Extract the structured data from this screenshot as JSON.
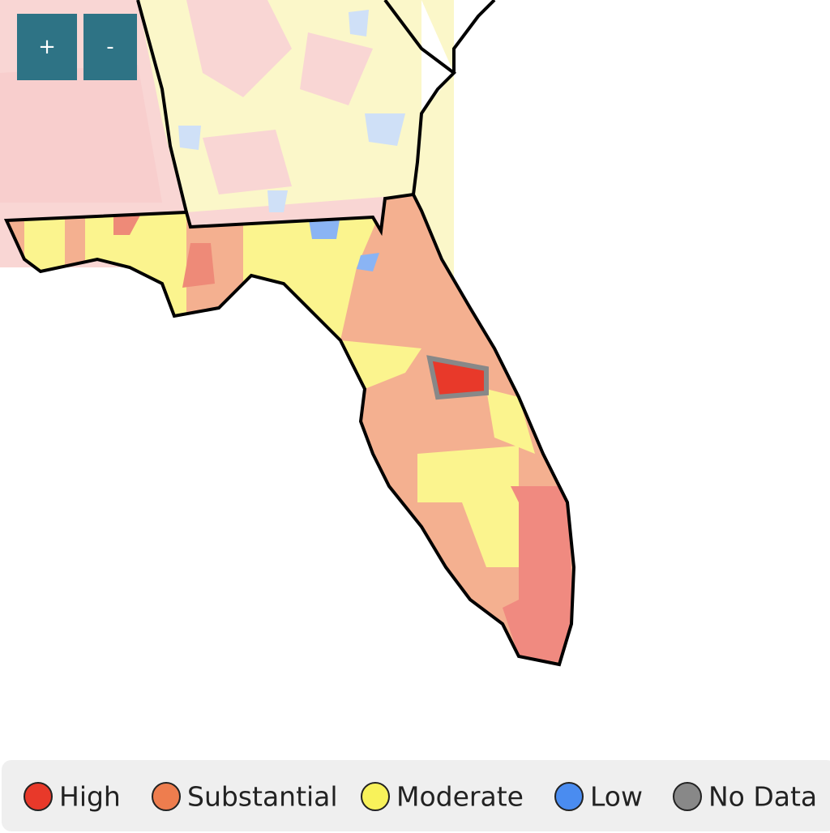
{
  "controls": {
    "zoom_in": "+",
    "zoom_out": "-"
  },
  "legend": {
    "items": [
      {
        "label": "High",
        "color": "#e8392a"
      },
      {
        "label": "Substantial",
        "color": "#ee7d4e"
      },
      {
        "label": "Moderate",
        "color": "#f8f25a"
      },
      {
        "label": "Low",
        "color": "#4a8cf0"
      },
      {
        "label": "No Data",
        "color": "#888888"
      }
    ]
  }
}
